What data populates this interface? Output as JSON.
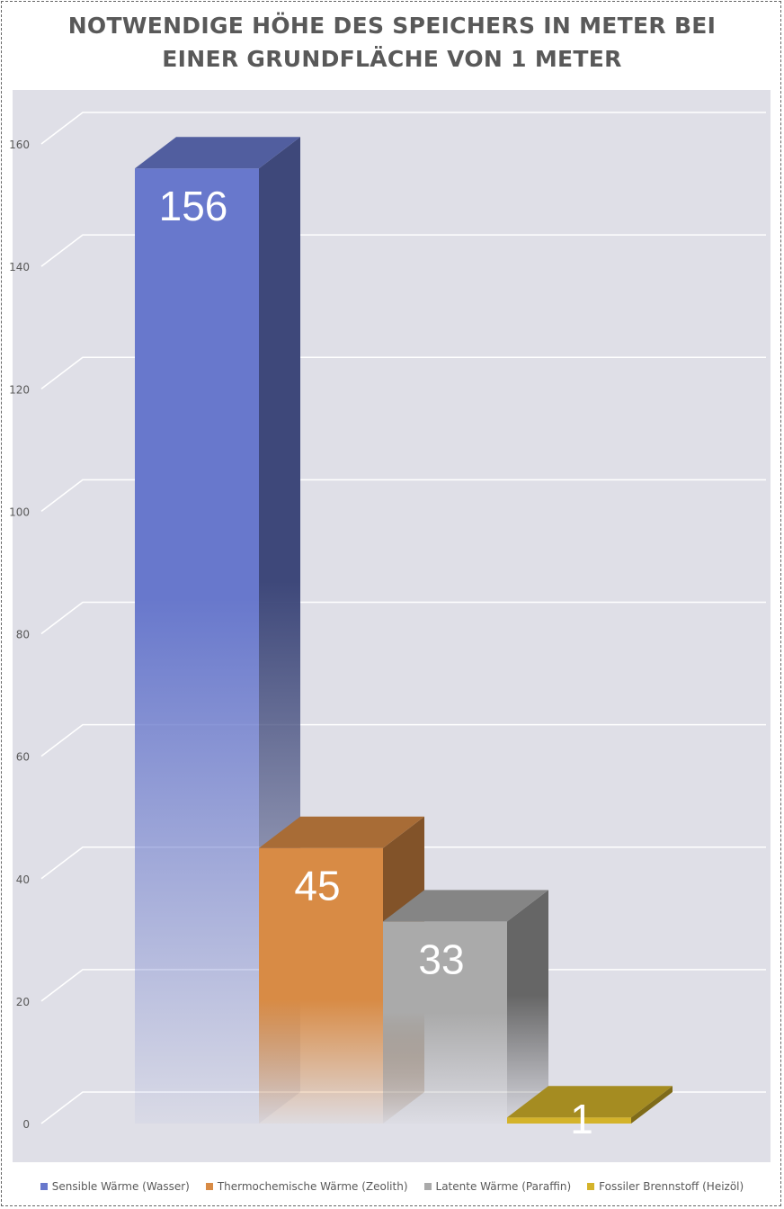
{
  "chart_data": {
    "type": "bar",
    "title_lines": [
      "NOTWENDIGE HÖHE DES SPEICHERS IN METER BEI",
      "EINER GRUNDFLÄCHE VON 1 METER"
    ],
    "categories": [
      "Sensible Wärme (Wasser)",
      "Thermochemische Wärme (Zeolith)",
      "Latente Wärme (Paraffin)",
      "Fossiler Brennstoff (Heizöl)"
    ],
    "values": [
      156,
      45,
      33,
      1
    ],
    "data_labels": [
      "156",
      "45",
      "33",
      "1"
    ],
    "colors": [
      "#6878cc",
      "#d88b45",
      "#aaaaaa",
      "#d4b32a"
    ],
    "yticks": [
      0,
      20,
      40,
      60,
      80,
      100,
      120,
      140,
      160
    ],
    "ylim": [
      0,
      160
    ],
    "grid": true,
    "three_d": true,
    "legend_position": "bottom"
  }
}
